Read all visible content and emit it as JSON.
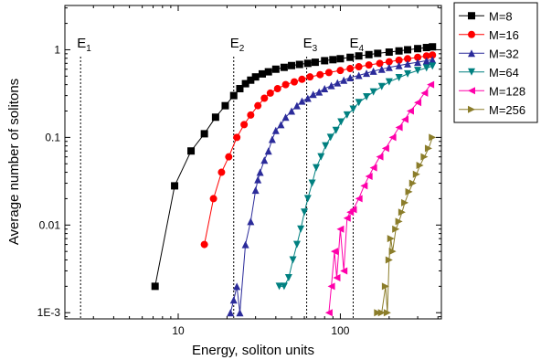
{
  "chart_data": {
    "type": "line",
    "xlabel": "Energy, soliton units",
    "ylabel": "Average number of solitons",
    "xscale": "log",
    "yscale": "log",
    "xlim": [
      2,
      420
    ],
    "ylim": [
      0.00085,
      3.2
    ],
    "x_ticks": [
      {
        "value": 10,
        "label": "10"
      },
      {
        "value": 100,
        "label": "100"
      }
    ],
    "y_ticks": [
      {
        "value": 0.001,
        "label": "1E-3"
      },
      {
        "value": 0.01,
        "label": "0.01"
      },
      {
        "value": 0.1,
        "label": "0.1"
      },
      {
        "value": 1,
        "label": "1"
      }
    ],
    "vlines": [
      {
        "name": "E",
        "sub": "1",
        "x": 2.5
      },
      {
        "name": "E",
        "sub": "2",
        "x": 22
      },
      {
        "name": "E",
        "sub": "3",
        "x": 62
      },
      {
        "name": "E",
        "sub": "4",
        "x": 120
      }
    ],
    "legend_position": "outside-right",
    "series": [
      {
        "name": "M=8",
        "color": "#000000",
        "marker": "square",
        "x": [
          7.2,
          9.5,
          12,
          14.5,
          17,
          19.5,
          22,
          24,
          26,
          28,
          30,
          33,
          36,
          40,
          45,
          50,
          56,
          63,
          70,
          80,
          90,
          100,
          115,
          130,
          150,
          170,
          200,
          230,
          260,
          300,
          340,
          370
        ],
        "y": [
          0.002,
          0.028,
          0.07,
          0.11,
          0.17,
          0.23,
          0.3,
          0.36,
          0.41,
          0.45,
          0.49,
          0.53,
          0.56,
          0.6,
          0.63,
          0.66,
          0.68,
          0.7,
          0.72,
          0.75,
          0.77,
          0.79,
          0.82,
          0.85,
          0.88,
          0.91,
          0.94,
          0.97,
          1.0,
          1.03,
          1.06,
          1.08
        ]
      },
      {
        "name": "M=16",
        "color": "#ff0000",
        "marker": "circle",
        "x": [
          14.5,
          16.5,
          18.5,
          20.5,
          23,
          25.5,
          28,
          31,
          34,
          37,
          41,
          46,
          52,
          58,
          65,
          75,
          85,
          100,
          115,
          130,
          150,
          175,
          200,
          230,
          260,
          300,
          340,
          370
        ],
        "y": [
          0.006,
          0.02,
          0.04,
          0.06,
          0.1,
          0.14,
          0.18,
          0.23,
          0.28,
          0.32,
          0.36,
          0.4,
          0.43,
          0.46,
          0.49,
          0.52,
          0.55,
          0.58,
          0.61,
          0.64,
          0.67,
          0.7,
          0.73,
          0.76,
          0.79,
          0.82,
          0.85,
          0.87
        ]
      },
      {
        "name": "M=32",
        "color": "#2b2b9a",
        "marker": "triangle-up",
        "x": [
          21,
          22,
          23,
          24,
          26,
          28,
          30,
          31,
          32,
          34,
          36,
          38,
          40,
          43,
          46,
          50,
          54,
          58,
          63,
          68,
          74,
          80,
          88,
          96,
          105,
          115,
          130,
          145,
          160,
          180,
          200,
          230,
          260,
          300,
          340,
          370
        ],
        "y": [
          0.001,
          0.0014,
          0.002,
          0.001,
          0.006,
          0.011,
          0.025,
          0.033,
          0.04,
          0.055,
          0.07,
          0.095,
          0.12,
          0.14,
          0.17,
          0.2,
          0.23,
          0.26,
          0.28,
          0.31,
          0.33,
          0.36,
          0.39,
          0.42,
          0.45,
          0.48,
          0.51,
          0.54,
          0.57,
          0.6,
          0.63,
          0.66,
          0.69,
          0.72,
          0.75,
          0.77
        ]
      },
      {
        "name": "M=64",
        "color": "#008080",
        "marker": "triangle-down",
        "x": [
          42,
          45,
          48,
          51,
          54,
          57,
          60,
          63,
          67,
          71,
          76,
          81,
          87,
          94,
          101,
          110,
          120,
          130,
          145,
          160,
          180,
          200,
          230,
          260,
          300,
          340,
          370
        ],
        "y": [
          0.002,
          0.002,
          0.0025,
          0.004,
          0.006,
          0.009,
          0.014,
          0.02,
          0.03,
          0.045,
          0.06,
          0.08,
          0.1,
          0.12,
          0.15,
          0.18,
          0.21,
          0.25,
          0.29,
          0.33,
          0.38,
          0.43,
          0.48,
          0.53,
          0.58,
          0.62,
          0.65
        ]
      },
      {
        "name": "M=128",
        "color": "#ff00aa",
        "marker": "triangle-left",
        "x": [
          85,
          88,
          92,
          95,
          100,
          105,
          110,
          115,
          120,
          130,
          140,
          150,
          160,
          175,
          190,
          210,
          230,
          250,
          270,
          300,
          330,
          360
        ],
        "y": [
          0.001,
          0.002,
          0.005,
          0.0025,
          0.009,
          0.003,
          0.012,
          0.014,
          0.015,
          0.02,
          0.028,
          0.036,
          0.045,
          0.06,
          0.075,
          0.1,
          0.13,
          0.16,
          0.2,
          0.25,
          0.32,
          0.4
        ]
      },
      {
        "name": "M=256",
        "color": "#8b7d2a",
        "marker": "triangle-right",
        "x": [
          170,
          180,
          190,
          195,
          200,
          205,
          210,
          220,
          230,
          240,
          250,
          265,
          280,
          295,
          310,
          330,
          350,
          370
        ],
        "y": [
          0.001,
          0.001,
          0.002,
          0.001,
          0.004,
          0.007,
          0.005,
          0.009,
          0.011,
          0.014,
          0.018,
          0.024,
          0.03,
          0.038,
          0.048,
          0.06,
          0.075,
          0.1
        ]
      }
    ]
  }
}
